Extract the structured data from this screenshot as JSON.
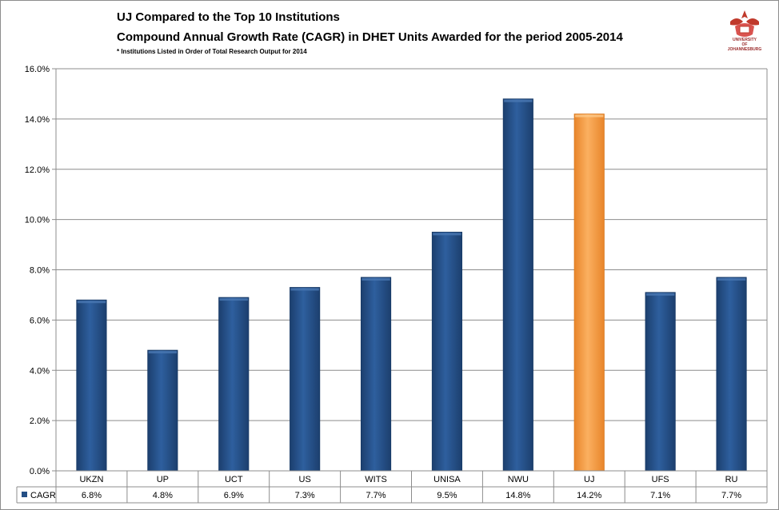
{
  "header": {
    "title_line1": "UJ Compared to the Top 10 Institutions",
    "title_line2": "Compound Annual Growth Rate (CAGR) in DHET Units Awarded for the period 2005-2014",
    "footnote": "* Institutions Listed in Order of Total Research Output for 2014"
  },
  "logo": {
    "line1": "UNIVERSITY",
    "line2": "OF",
    "line3": "JOHANNESBURG",
    "color": "#c0392b"
  },
  "chart_data": {
    "type": "bar",
    "categories": [
      "UKZN",
      "UP",
      "UCT",
      "US",
      "WITS",
      "UNISA",
      "NWU",
      "UJ",
      "UFS",
      "RU"
    ],
    "series": [
      {
        "name": "CAGR",
        "values": [
          6.8,
          4.8,
          6.9,
          7.3,
          7.7,
          9.5,
          14.8,
          14.2,
          7.1,
          7.7
        ],
        "value_labels": [
          "6.8%",
          "4.8%",
          "6.9%",
          "7.3%",
          "7.7%",
          "9.5%",
          "14.8%",
          "14.2%",
          "7.1%",
          "7.7%"
        ]
      }
    ],
    "highlight_category": "UJ",
    "colors": {
      "default": "#254f85",
      "highlight": "#f79a3d"
    },
    "ylim": [
      0,
      16
    ],
    "yticks": [
      0,
      2,
      4,
      6,
      8,
      10,
      12,
      14,
      16
    ],
    "ytick_labels": [
      "0.0%",
      "2.0%",
      "4.0%",
      "6.0%",
      "8.0%",
      "10.0%",
      "12.0%",
      "14.0%",
      "16.0%"
    ],
    "grid": true,
    "legend": "data table below chart"
  }
}
